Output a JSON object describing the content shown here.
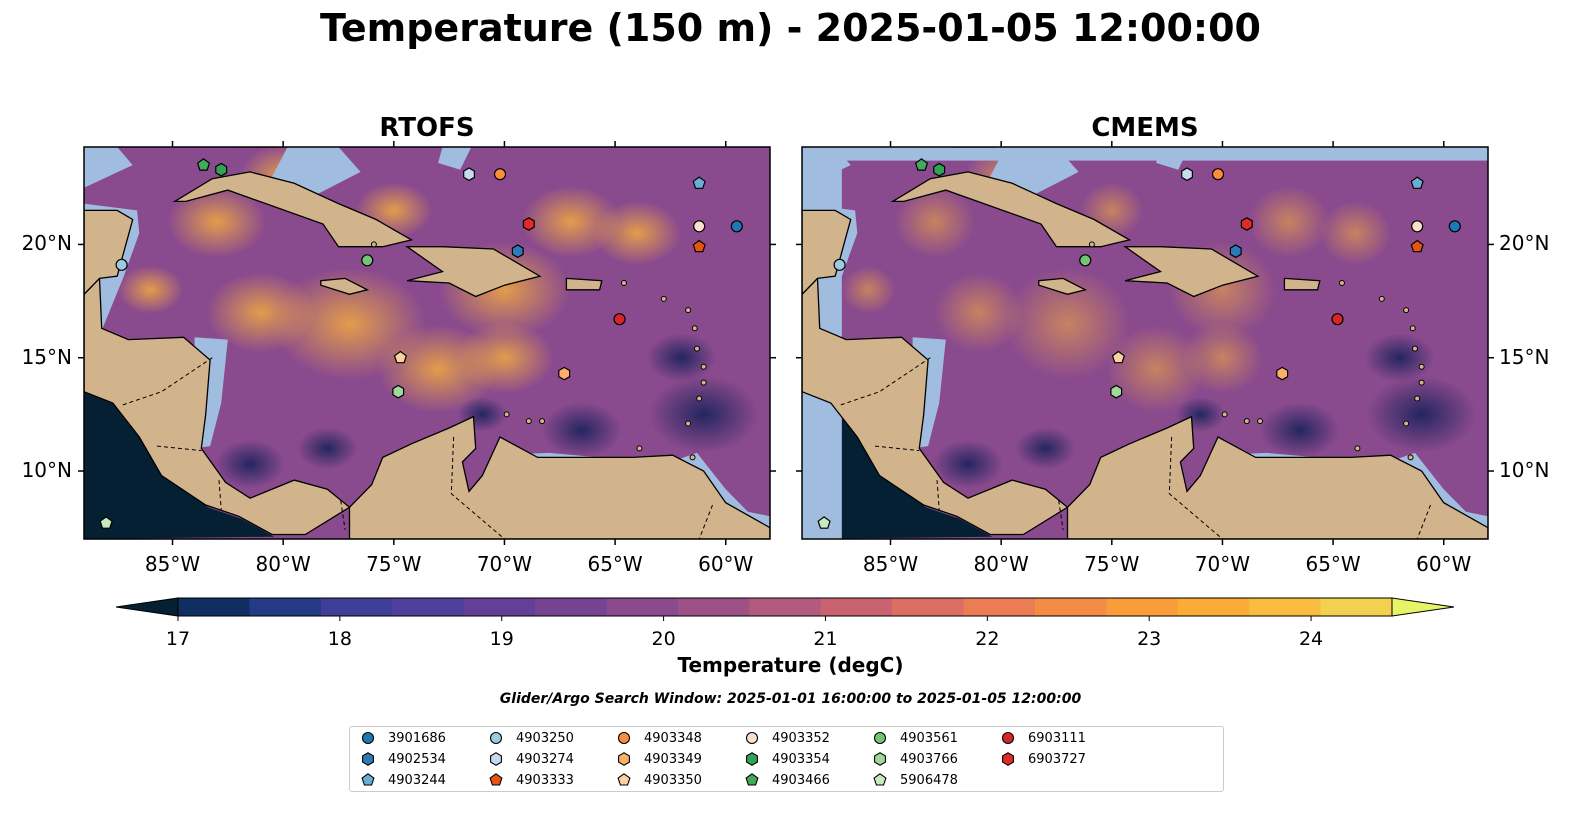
{
  "title": "Temperature (150 m) - 2025-01-05 12:00:00",
  "panels": [
    {
      "title": "RTOFS"
    },
    {
      "title": "CMEMS"
    }
  ],
  "axes": {
    "x_ticks": [
      "85°W",
      "80°W",
      "75°W",
      "70°W",
      "65°W",
      "60°W"
    ],
    "x_values": [
      -85,
      -80,
      -75,
      -70,
      -65,
      -60
    ],
    "y_ticks": [
      "20°N",
      "15°N",
      "10°N"
    ],
    "y_values": [
      20,
      15,
      10
    ],
    "lon_range": [
      -89,
      -58
    ],
    "lat_range": [
      7,
      24.3
    ]
  },
  "colorbar": {
    "label": "Temperature (degC)",
    "ticks": [
      "17",
      "18",
      "19",
      "20",
      "21",
      "22",
      "23",
      "24"
    ],
    "tick_values": [
      17,
      18,
      19,
      20,
      21,
      22,
      23,
      24
    ],
    "range": [
      16.6,
      24.9
    ],
    "colors": [
      "#062033",
      "#0e2f60",
      "#243a86",
      "#3c3e98",
      "#513f9c",
      "#633f98",
      "#764393",
      "#894a8e",
      "#9e5186",
      "#b45a7c",
      "#c96271",
      "#dc6e63",
      "#ec7c53",
      "#f58c45",
      "#f99c3a",
      "#fbac37",
      "#f8bd3f",
      "#f2d050",
      "#e6f466"
    ]
  },
  "search_window": "Glider/Argo Search Window: 2025-01-01 16:00:00 to 2025-01-05 12:00:00",
  "colors": {
    "land": "#d2b48c",
    "ocean_fill": "#a0bde0",
    "no_data": "#062033"
  },
  "floats": [
    {
      "id": "3901686",
      "marker": "circle",
      "color": "#1f77b4",
      "lon": -59.5,
      "lat": 20.8
    },
    {
      "id": "4902534",
      "marker": "hexagon",
      "color": "#2a7bb8",
      "lon": -69.4,
      "lat": 19.7
    },
    {
      "id": "4903244",
      "marker": "pentagon",
      "color": "#6aaed6",
      "lon": -61.2,
      "lat": 22.7
    },
    {
      "id": "4903250",
      "marker": "circle",
      "color": "#9ecae1",
      "lon": -87.3,
      "lat": 19.1
    },
    {
      "id": "4903274",
      "marker": "hexagon",
      "color": "#c6dbef",
      "lon": -71.6,
      "lat": 23.1
    },
    {
      "id": "4903333",
      "marker": "pentagon",
      "color": "#e6550d",
      "lon": -61.2,
      "lat": 19.9
    },
    {
      "id": "4903348",
      "marker": "circle",
      "color": "#fd8d3c",
      "lon": -70.2,
      "lat": 23.1
    },
    {
      "id": "4903349",
      "marker": "hexagon",
      "color": "#fdae6b",
      "lon": -67.3,
      "lat": 14.3
    },
    {
      "id": "4903350",
      "marker": "pentagon",
      "color": "#fdd0a2",
      "lon": -74.7,
      "lat": 15.0
    },
    {
      "id": "4903352",
      "marker": "circle",
      "color": "#fde0cc",
      "lon": -61.2,
      "lat": 20.8
    },
    {
      "id": "4903354",
      "marker": "hexagon",
      "color": "#31a354",
      "lon": -82.8,
      "lat": 23.3
    },
    {
      "id": "4903466",
      "marker": "pentagon",
      "color": "#41ab5d",
      "lon": -83.6,
      "lat": 23.5
    },
    {
      "id": "4903561",
      "marker": "circle",
      "color": "#74c476",
      "lon": -76.2,
      "lat": 19.3
    },
    {
      "id": "4903766",
      "marker": "hexagon",
      "color": "#a1d99b",
      "lon": -74.8,
      "lat": 13.5
    },
    {
      "id": "5906478",
      "marker": "pentagon",
      "color": "#c7e9c0",
      "lon": -88.0,
      "lat": 7.7
    },
    {
      "id": "6903111",
      "marker": "circle",
      "color": "#d62728",
      "lon": -64.8,
      "lat": 16.7
    },
    {
      "id": "6903727",
      "marker": "hexagon",
      "color": "#de2d26",
      "lon": -68.9,
      "lat": 20.9
    }
  ]
}
